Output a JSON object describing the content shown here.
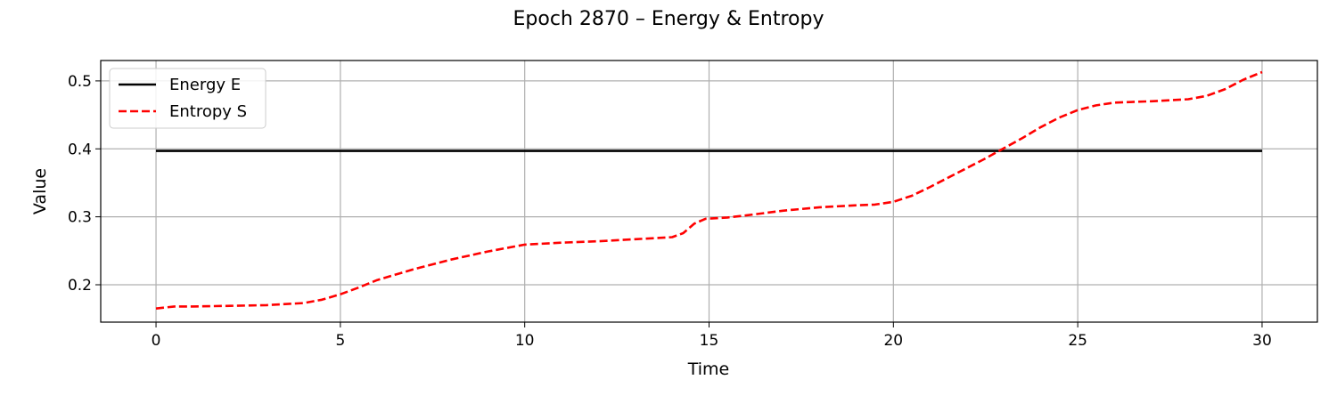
{
  "chart_data": {
    "type": "line",
    "title": "Epoch 2870 – Energy & Entropy",
    "xlabel": "Time",
    "ylabel": "Value",
    "xlim": [
      -1.5,
      31.5
    ],
    "ylim": [
      0.145,
      0.53
    ],
    "xticks": [
      0,
      5,
      10,
      15,
      20,
      25,
      30
    ],
    "xtick_labels": [
      "0",
      "5",
      "10",
      "15",
      "20",
      "25",
      "30"
    ],
    "yticks": [
      0.2,
      0.3,
      0.4,
      0.5
    ],
    "ytick_labels": [
      "0.2",
      "0.3",
      "0.4",
      "0.5"
    ],
    "grid": true,
    "legend_position": "upper-left",
    "series": [
      {
        "name": "Energy E",
        "color": "#000000",
        "style": "solid",
        "x": [
          0,
          30
        ],
        "y": [
          0.397,
          0.397
        ]
      },
      {
        "name": "Entropy S",
        "color": "#ff0000",
        "style": "dashed",
        "x": [
          0,
          0.5,
          1,
          2,
          3,
          4,
          4.5,
          5,
          5.5,
          6,
          7,
          8,
          9,
          10,
          11,
          12,
          13,
          14,
          14.3,
          14.6,
          14.9,
          15.5,
          16,
          17,
          18,
          19,
          19.5,
          20,
          20.5,
          21,
          21.5,
          22,
          22.5,
          23,
          23.5,
          24,
          24.5,
          25,
          25.5,
          26,
          27,
          28,
          28.5,
          29,
          29.5,
          30
        ],
        "y": [
          0.165,
          0.168,
          0.168,
          0.169,
          0.17,
          0.173,
          0.178,
          0.186,
          0.196,
          0.207,
          0.223,
          0.237,
          0.249,
          0.259,
          0.262,
          0.264,
          0.267,
          0.27,
          0.276,
          0.29,
          0.297,
          0.299,
          0.302,
          0.309,
          0.314,
          0.317,
          0.318,
          0.322,
          0.331,
          0.344,
          0.358,
          0.372,
          0.386,
          0.401,
          0.416,
          0.432,
          0.446,
          0.457,
          0.464,
          0.468,
          0.47,
          0.473,
          0.478,
          0.488,
          0.502,
          0.513
        ]
      }
    ]
  }
}
